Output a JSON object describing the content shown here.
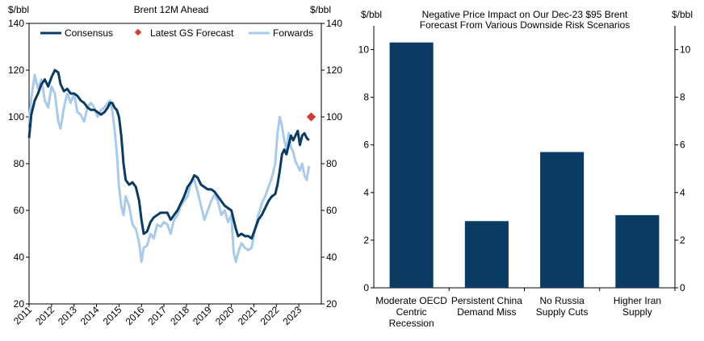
{
  "chart_data": [
    {
      "type": "line",
      "title": "Brent 12M Ahead",
      "ylabel_left": "$/bbl",
      "ylabel_right": "$/bbl",
      "ylim": [
        20,
        140
      ],
      "yticks": [
        20,
        40,
        60,
        80,
        100,
        120,
        140
      ],
      "xlim": [
        2011,
        2024
      ],
      "xticks": [
        "2011",
        "2012",
        "2013",
        "2014",
        "2015",
        "2016",
        "2017",
        "2018",
        "2019",
        "2020",
        "2021",
        "2022",
        "2023"
      ],
      "legend_position": "top",
      "colors": {
        "consensus": "#0b3a63",
        "forwards": "#a9cbe9",
        "gs_forecast": "#d03c35"
      },
      "series": [
        {
          "name": "Consensus",
          "x": [
            2011.0,
            2011.1,
            2011.25,
            2011.4,
            2011.55,
            2011.7,
            2011.85,
            2012.0,
            2012.15,
            2012.3,
            2012.4,
            2012.55,
            2012.7,
            2012.85,
            2013.0,
            2013.15,
            2013.3,
            2013.45,
            2013.6,
            2013.75,
            2013.9,
            2014.05,
            2014.2,
            2014.35,
            2014.5,
            2014.6,
            2014.7,
            2014.8,
            2014.9,
            2015.0,
            2015.1,
            2015.2,
            2015.3,
            2015.45,
            2015.6,
            2015.75,
            2015.9,
            2016.0,
            2016.1,
            2016.25,
            2016.4,
            2016.55,
            2016.7,
            2016.85,
            2017.0,
            2017.15,
            2017.3,
            2017.45,
            2017.6,
            2017.75,
            2017.9,
            2018.05,
            2018.2,
            2018.35,
            2018.5,
            2018.65,
            2018.8,
            2018.95,
            2019.1,
            2019.25,
            2019.4,
            2019.55,
            2019.7,
            2019.85,
            2020.0,
            2020.1,
            2020.2,
            2020.3,
            2020.45,
            2020.6,
            2020.75,
            2020.9,
            2021.05,
            2021.2,
            2021.35,
            2021.5,
            2021.65,
            2021.8,
            2021.95,
            2022.05,
            2022.15,
            2022.25,
            2022.35,
            2022.45,
            2022.55,
            2022.65,
            2022.75,
            2022.85,
            2022.95,
            2023.05,
            2023.15,
            2023.25,
            2023.35,
            2023.45
          ],
          "values": [
            91,
            101,
            107,
            110,
            114,
            116,
            113,
            117,
            120,
            119,
            114,
            111,
            112,
            110,
            110,
            109,
            107,
            106,
            104,
            103,
            103,
            102,
            101,
            102,
            104,
            106,
            106,
            104,
            103,
            100,
            92,
            80,
            73,
            71,
            72,
            70,
            64,
            56,
            50,
            51,
            55,
            57,
            58,
            59,
            59,
            59,
            56,
            58,
            60,
            63,
            66,
            70,
            72,
            75,
            74,
            71,
            70,
            69,
            69,
            68,
            66,
            64,
            62,
            61,
            60,
            56,
            52,
            49,
            50,
            49,
            49,
            48,
            52,
            56,
            58,
            61,
            64,
            66,
            67,
            71,
            77,
            84,
            86,
            84,
            88,
            92,
            90,
            92,
            94,
            88,
            92,
            93,
            91,
            90
          ]
        },
        {
          "name": "Forwards",
          "x": [
            2011.0,
            2011.1,
            2011.25,
            2011.4,
            2011.55,
            2011.7,
            2011.85,
            2012.0,
            2012.15,
            2012.3,
            2012.4,
            2012.55,
            2012.7,
            2012.85,
            2013.0,
            2013.15,
            2013.3,
            2013.45,
            2013.6,
            2013.75,
            2013.9,
            2014.05,
            2014.2,
            2014.35,
            2014.5,
            2014.6,
            2014.7,
            2014.8,
            2014.9,
            2015.0,
            2015.1,
            2015.2,
            2015.3,
            2015.45,
            2015.6,
            2015.75,
            2015.9,
            2016.0,
            2016.1,
            2016.25,
            2016.4,
            2016.55,
            2016.7,
            2016.85,
            2017.0,
            2017.15,
            2017.3,
            2017.45,
            2017.6,
            2017.75,
            2017.9,
            2018.05,
            2018.2,
            2018.35,
            2018.5,
            2018.65,
            2018.8,
            2018.95,
            2019.1,
            2019.25,
            2019.4,
            2019.55,
            2019.7,
            2019.85,
            2020.0,
            2020.1,
            2020.2,
            2020.3,
            2020.45,
            2020.6,
            2020.75,
            2020.9,
            2021.05,
            2021.2,
            2021.35,
            2021.5,
            2021.65,
            2021.8,
            2021.95,
            2022.05,
            2022.15,
            2022.25,
            2022.35,
            2022.45,
            2022.55,
            2022.65,
            2022.75,
            2022.85,
            2022.95,
            2023.05,
            2023.15,
            2023.25,
            2023.35,
            2023.45
          ],
          "values": [
            97,
            108,
            118,
            112,
            116,
            107,
            104,
            113,
            110,
            98,
            95,
            104,
            110,
            106,
            110,
            102,
            101,
            98,
            104,
            106,
            104,
            100,
            103,
            104,
            106,
            107,
            103,
            95,
            85,
            70,
            62,
            58,
            66,
            62,
            54,
            52,
            46,
            38,
            44,
            45,
            50,
            48,
            54,
            53,
            55,
            54,
            50,
            56,
            58,
            62,
            64,
            66,
            72,
            73,
            68,
            62,
            56,
            60,
            64,
            67,
            64,
            58,
            60,
            55,
            58,
            42,
            38,
            42,
            46,
            44,
            43,
            44,
            52,
            58,
            63,
            66,
            70,
            74,
            80,
            93,
            100,
            96,
            90,
            86,
            93,
            87,
            85,
            81,
            79,
            77,
            80,
            75,
            73,
            79
          ]
        },
        {
          "name": "Latest GS Forecast",
          "x": [
            2023.55
          ],
          "values": [
            100
          ]
        }
      ]
    },
    {
      "type": "bar",
      "title": "Negative Price Impact on Our Dec-23 $95 Brent Forecast From Various Downside Risk Scenarios",
      "title_lines": [
        "Negative Price Impact on Our Dec-23 $95 Brent",
        "Forecast From Various Downside Risk Scenarios"
      ],
      "ylabel_left": "$/bbl",
      "ylabel_right": "$/bbl",
      "ylim": [
        0,
        11
      ],
      "yticks": [
        0,
        2,
        4,
        6,
        8,
        10
      ],
      "bar_color": "#0b3a63",
      "categories": [
        [
          "Moderate OECD",
          "Centric",
          "Recession"
        ],
        [
          "Persistent China",
          "Demand Miss"
        ],
        [
          "No Russia",
          "Supply Cuts"
        ],
        [
          "Higher Iran",
          "Supply"
        ]
      ],
      "values": [
        10.3,
        2.8,
        5.7,
        3.05
      ]
    }
  ]
}
